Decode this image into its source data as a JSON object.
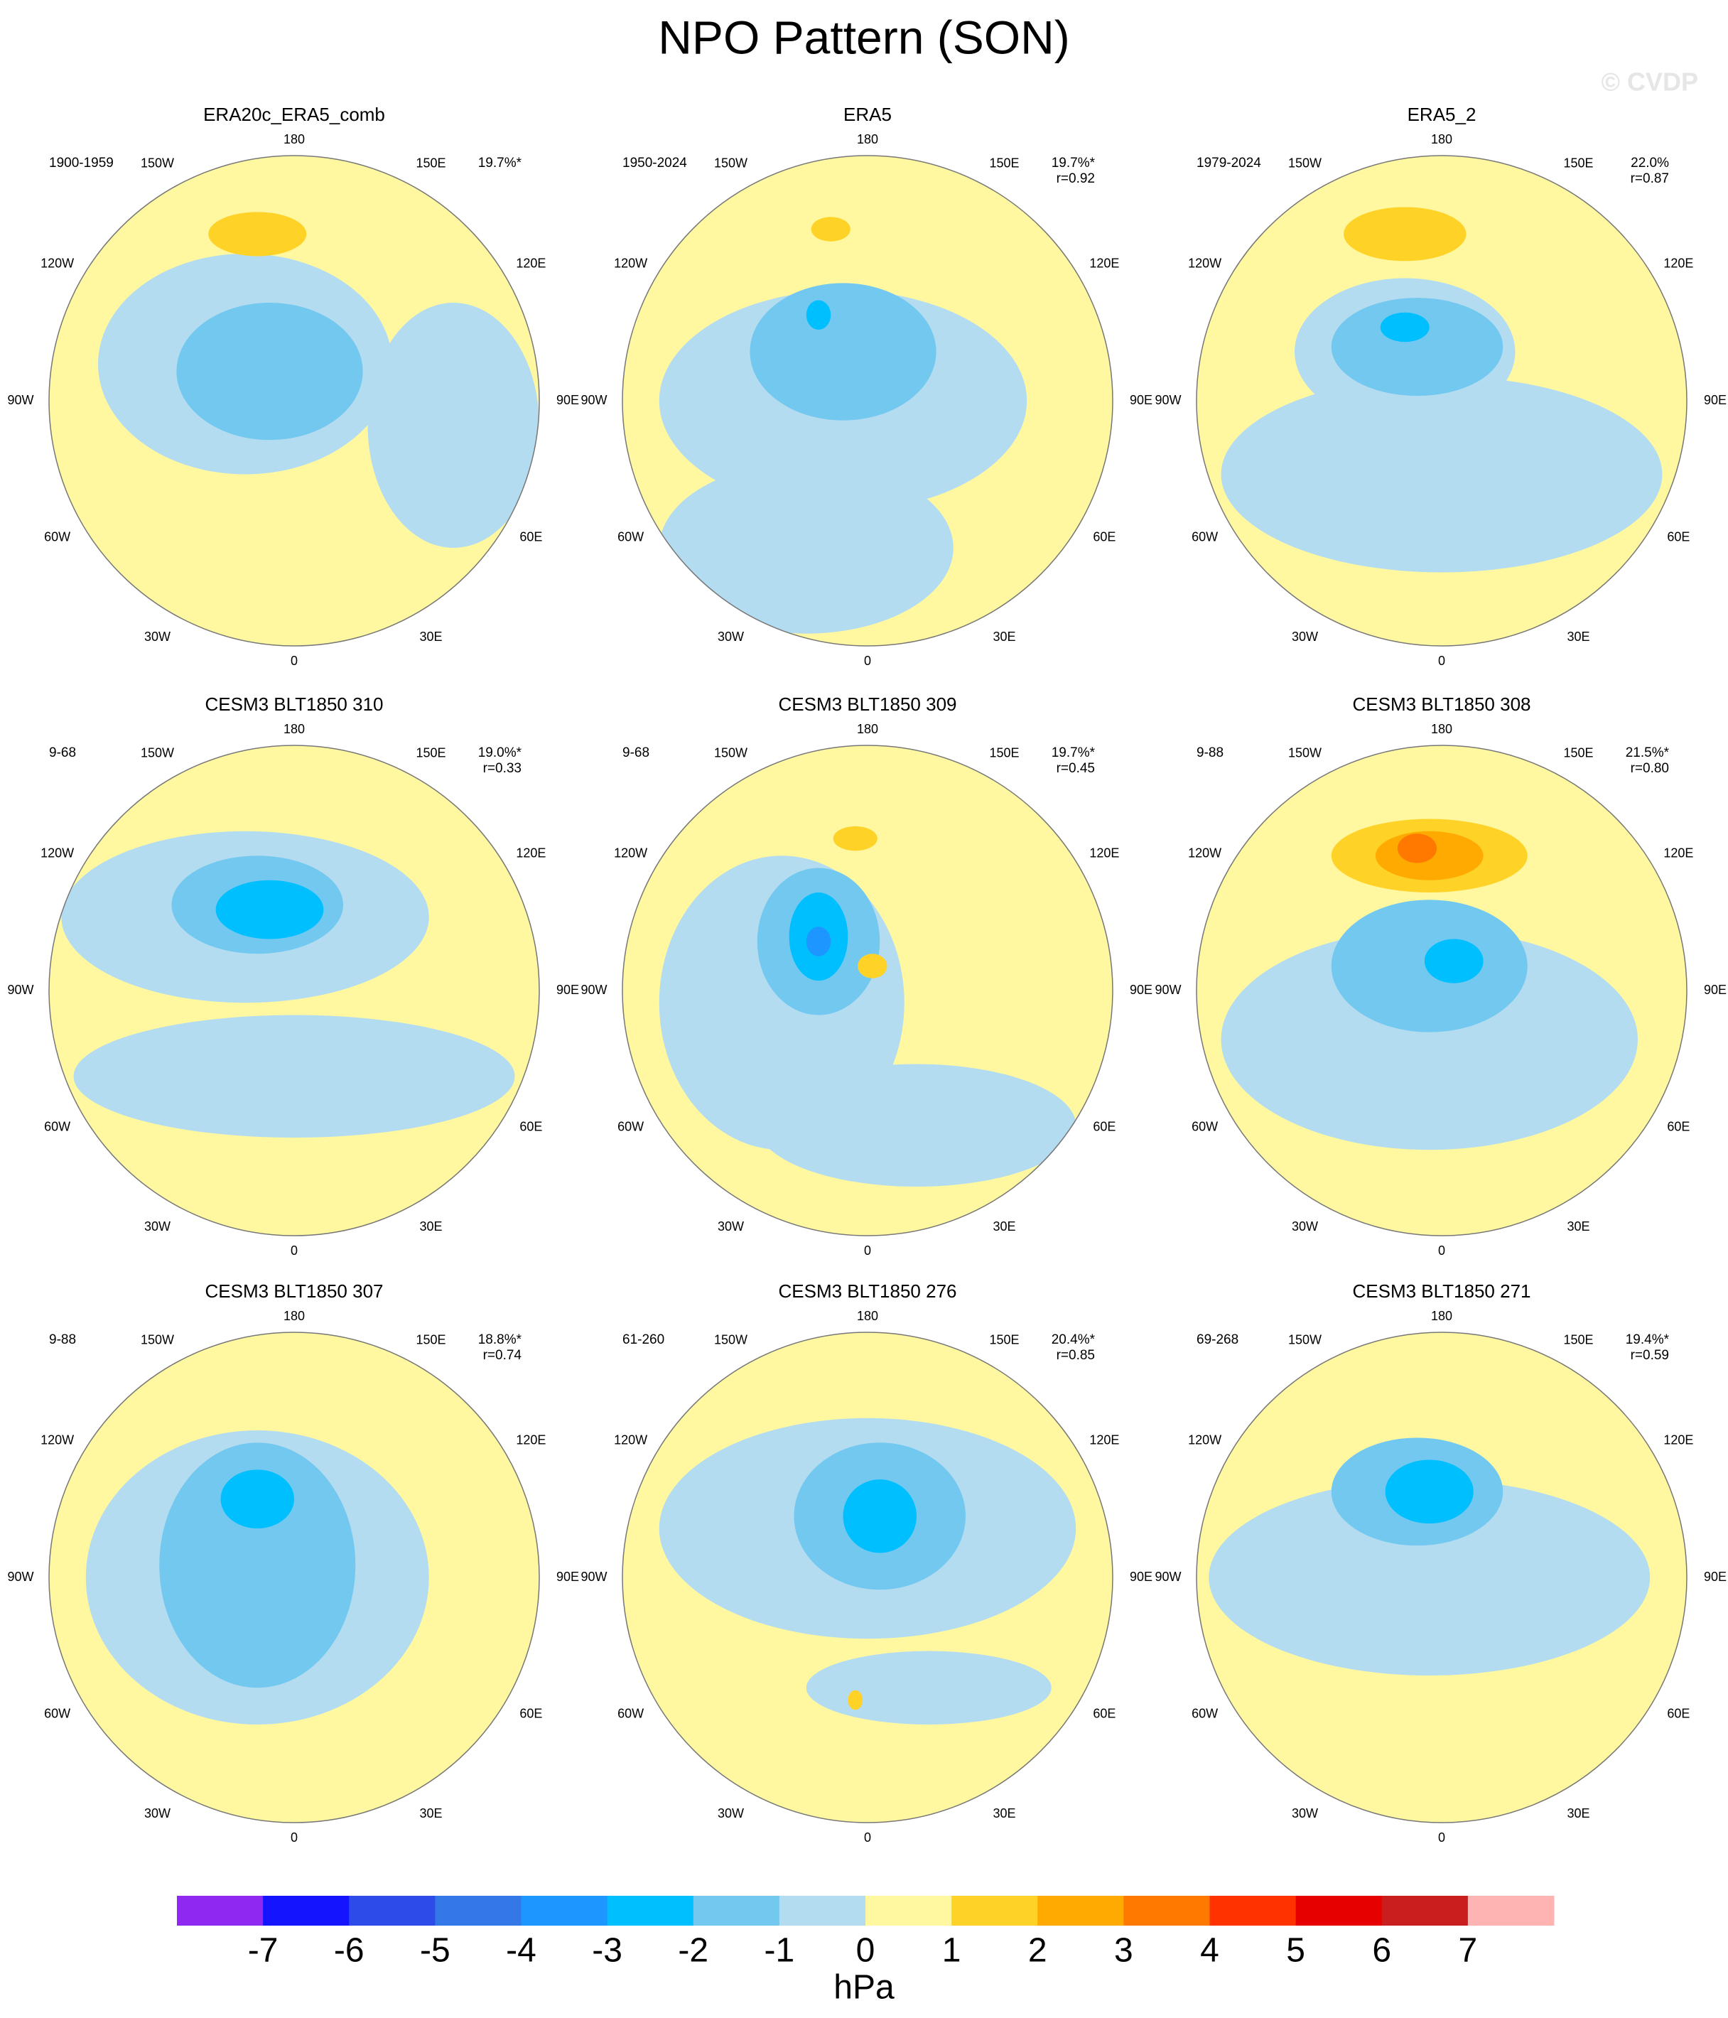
{
  "title": "NPO Pattern (SON)",
  "watermark": "© CVDP",
  "longitude_labels": [
    "180",
    "150E",
    "120E",
    "90E",
    "60E",
    "30E",
    "0",
    "30W",
    "60W",
    "90W",
    "120W",
    "150W"
  ],
  "panels": [
    {
      "title": "ERA20c_ERA5_comb",
      "period": "1900-1959",
      "percent": "19.7%*"
    },
    {
      "title": "ERA5",
      "period": "1950-2024",
      "percent": "19.7%*",
      "r": "r=0.92"
    },
    {
      "title": "ERA5_2",
      "period": "1979-2024",
      "percent": "22.0%",
      "r": "r=0.87"
    },
    {
      "title": "CESM3 BLT1850 310",
      "period": "9-68",
      "percent": "19.0%*",
      "r": "r=0.33"
    },
    {
      "title": "CESM3 BLT1850 309",
      "period": "9-68",
      "percent": "19.7%*",
      "r": "r=0.45"
    },
    {
      "title": "CESM3 BLT1850 308",
      "period": "9-88",
      "percent": "21.5%*",
      "r": "r=0.80"
    },
    {
      "title": "CESM3 BLT1850 307",
      "period": "9-88",
      "percent": "18.8%*",
      "r": "r=0.74"
    },
    {
      "title": "CESM3 BLT1850 276",
      "period": "61-260",
      "percent": "20.4%*",
      "r": "r=0.85"
    },
    {
      "title": "CESM3 BLT1850 271",
      "period": "69-268",
      "percent": "19.4%*",
      "r": "r=0.59"
    }
  ],
  "colorbar": {
    "levels": [
      -7,
      -6,
      -5,
      -4,
      -3,
      -2,
      -1,
      0,
      1,
      2,
      3,
      4,
      5,
      6,
      7
    ],
    "colors": [
      "#8f28f0",
      "#1414ff",
      "#2d4be8",
      "#3478e8",
      "#1e96ff",
      "#00bfff",
      "#73c8f0",
      "#b4dcf0",
      "#fff8a0",
      "#ffd228",
      "#ffaa00",
      "#ff7800",
      "#ff3200",
      "#e60000",
      "#c81e1e",
      "#ffb4b4"
    ],
    "unit": "hPa"
  }
}
